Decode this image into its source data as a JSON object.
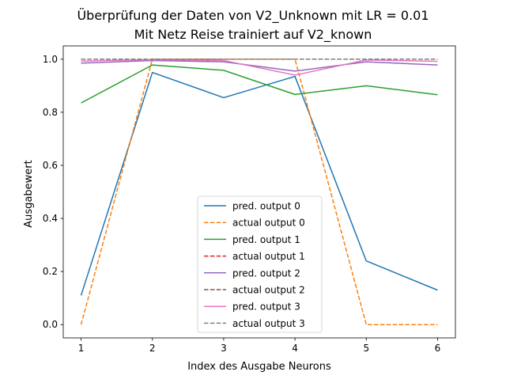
{
  "chart_data": {
    "type": "line",
    "title_line1": "Überprüfung der Daten von V2_Unknown mit LR = 0.01",
    "title_line2": "Mit Netz Reise trainiert auf V2_known",
    "xlabel": "Index des Ausgabe Neurons",
    "ylabel": "Ausgabewert",
    "x": [
      1,
      2,
      3,
      4,
      5,
      6
    ],
    "xlim": [
      0.75,
      6.25
    ],
    "ylim": [
      -0.05,
      1.05
    ],
    "xticks": [
      "1",
      "2",
      "3",
      "4",
      "5",
      "6"
    ],
    "yticks": [
      "0.0",
      "0.2",
      "0.4",
      "0.6",
      "0.8",
      "1.0"
    ],
    "grid": false,
    "legend_position": "lower-center",
    "series": [
      {
        "name": "pred. output 0",
        "color": "#1f77b4",
        "dashed": false,
        "values": [
          0.11,
          0.95,
          0.855,
          0.935,
          0.24,
          0.13
        ]
      },
      {
        "name": "actual output 0",
        "color": "#ff7f0e",
        "dashed": true,
        "values": [
          0.0,
          1.0,
          1.0,
          1.0,
          0.0,
          0.0
        ]
      },
      {
        "name": "pred. output 1",
        "color": "#2ca02c",
        "dashed": false,
        "values": [
          0.835,
          0.978,
          0.958,
          0.867,
          0.9,
          0.866
        ]
      },
      {
        "name": "actual output 1",
        "color": "#d62728",
        "dashed": true,
        "values": [
          1.0,
          1.0,
          1.0,
          1.0,
          1.0,
          1.0
        ]
      },
      {
        "name": "pred. output 2",
        "color": "#9467bd",
        "dashed": false,
        "values": [
          0.985,
          0.995,
          0.99,
          0.955,
          0.99,
          0.978
        ]
      },
      {
        "name": "actual output 2",
        "color": "#8c564b",
        "dashed": true,
        "values": [
          1.0,
          1.0,
          1.0,
          1.0,
          1.0,
          1.0
        ]
      },
      {
        "name": "pred. output 3",
        "color": "#e377c2",
        "dashed": false,
        "values": [
          0.993,
          0.998,
          0.995,
          0.94,
          0.997,
          0.992
        ]
      },
      {
        "name": "actual output 3",
        "color": "#7f7f7f",
        "dashed": true,
        "values": [
          1.0,
          1.0,
          1.0,
          1.0,
          1.0,
          1.0
        ]
      }
    ]
  }
}
